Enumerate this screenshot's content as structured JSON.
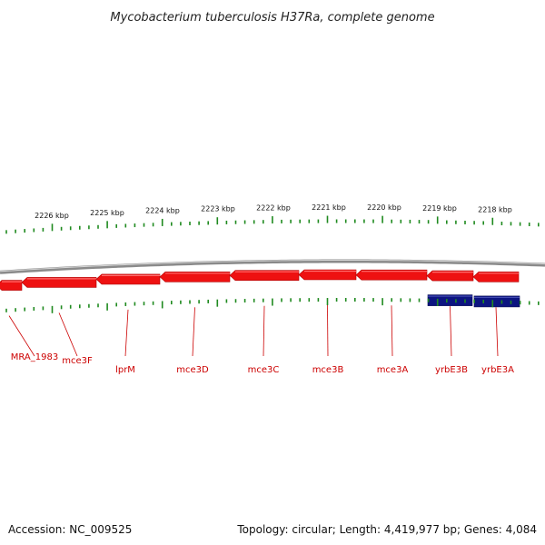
{
  "title": "Mycobacterium tuberculosis H37Ra, complete genome",
  "accession_text": "Accession: NC_009525",
  "topology_text": "Topology: circular; Length: 4,419,977 bp; Genes: 4,084",
  "colors": {
    "backbone": "#8a8a8a",
    "reverse_gene": "#ee1111",
    "forward_gene": "#0c1480",
    "ticks": "#1f8a1f",
    "label": "#cc0000"
  },
  "scale": {
    "unit": "kbp",
    "labels": [
      "2226 kbp",
      "2225 kbp",
      "2224 kbp",
      "2223 kbp",
      "2222 kbp",
      "2221 kbp",
      "2220 kbp",
      "2219 kbp",
      "2218 kbp"
    ]
  },
  "genes": [
    {
      "name": "MRA_1983",
      "strand": "reverse"
    },
    {
      "name": "mce3F",
      "strand": "reverse"
    },
    {
      "name": "lprM",
      "strand": "reverse"
    },
    {
      "name": "mce3D",
      "strand": "reverse"
    },
    {
      "name": "mce3C",
      "strand": "reverse"
    },
    {
      "name": "mce3B",
      "strand": "reverse"
    },
    {
      "name": "mce3A",
      "strand": "reverse"
    },
    {
      "name": "yrbE3B",
      "strand": "reverse"
    },
    {
      "name": "yrbE3A",
      "strand": "reverse"
    },
    {
      "name": "",
      "strand": "forward"
    },
    {
      "name": "",
      "strand": "forward"
    }
  ]
}
